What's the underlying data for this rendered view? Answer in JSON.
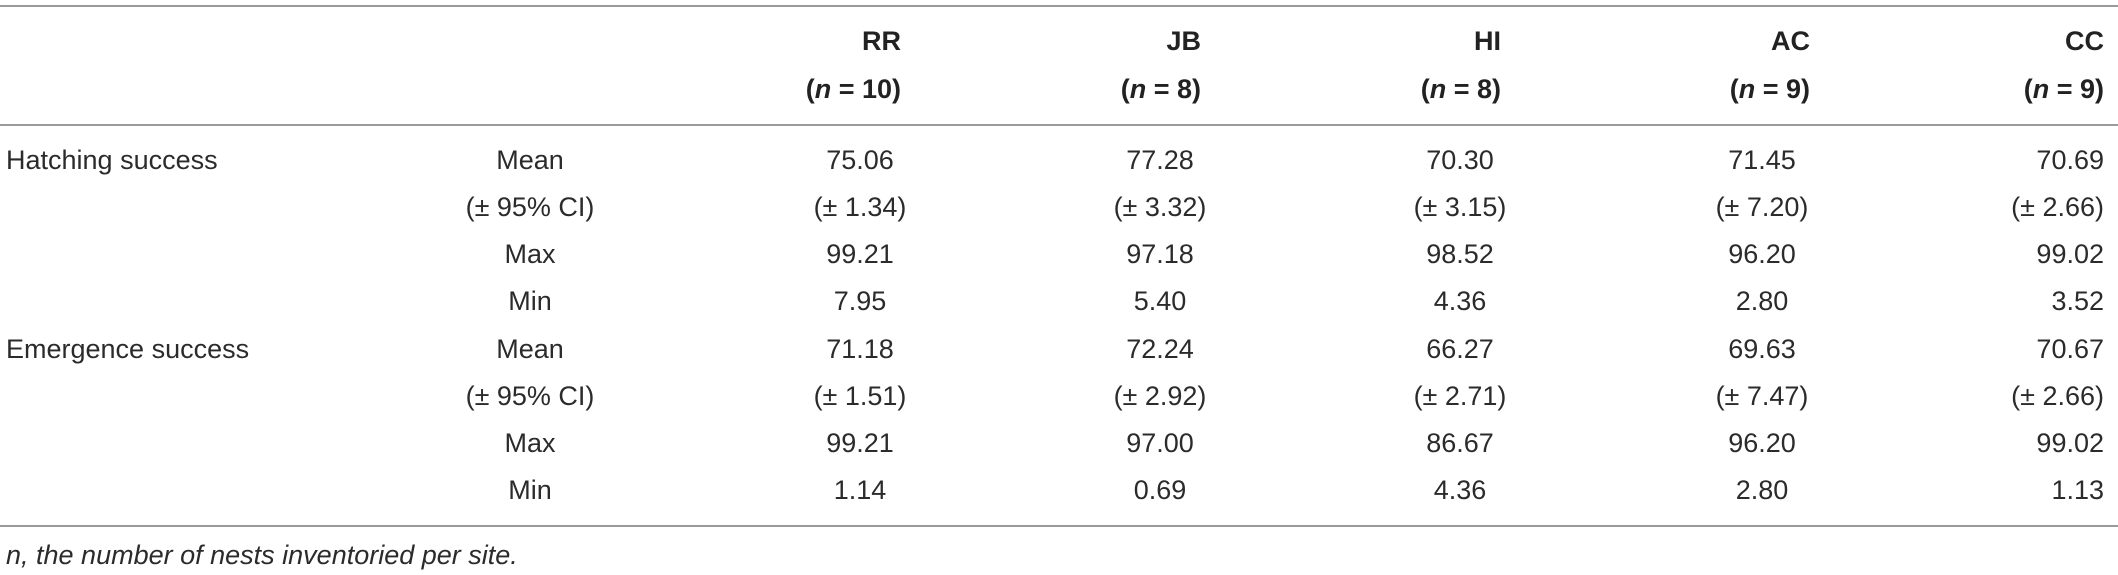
{
  "columns": [
    {
      "site": "RR",
      "n_label": "(n = 10)"
    },
    {
      "site": "JB",
      "n_label": "(n = 8)"
    },
    {
      "site": "HI",
      "n_label": "(n = 8)"
    },
    {
      "site": "AC",
      "n_label": "(n = 9)"
    },
    {
      "site": "CC",
      "n_label": "(n = 9)"
    }
  ],
  "groups": [
    {
      "name": "Hatching success",
      "rows": [
        {
          "stat": "Mean",
          "values": [
            "75.06",
            "77.28",
            "70.30",
            "71.45",
            "70.69"
          ]
        },
        {
          "stat": "(± 95% CI)",
          "values": [
            "(± 1.34)",
            "(± 3.32)",
            "(± 3.15)",
            "(± 7.20)",
            "(± 2.66)"
          ]
        },
        {
          "stat": "Max",
          "values": [
            "99.21",
            "97.18",
            "98.52",
            "96.20",
            "99.02"
          ]
        },
        {
          "stat": "Min",
          "values": [
            "7.95",
            "5.40",
            "4.36",
            "2.80",
            "3.52"
          ]
        }
      ]
    },
    {
      "name": "Emergence success",
      "rows": [
        {
          "stat": "Mean",
          "values": [
            "71.18",
            "72.24",
            "66.27",
            "69.63",
            "70.67"
          ]
        },
        {
          "stat": "(± 95% CI)",
          "values": [
            "(± 1.51)",
            "(± 2.92)",
            "(± 2.71)",
            "(± 7.47)",
            "(± 2.66)"
          ]
        },
        {
          "stat": "Max",
          "values": [
            "99.21",
            "97.00",
            "86.67",
            "96.20",
            "99.02"
          ]
        },
        {
          "stat": "Min",
          "values": [
            "1.14",
            "0.69",
            "4.36",
            "2.80",
            "1.13"
          ]
        }
      ]
    }
  ],
  "footnote": "n, the number of nests inventoried per site."
}
